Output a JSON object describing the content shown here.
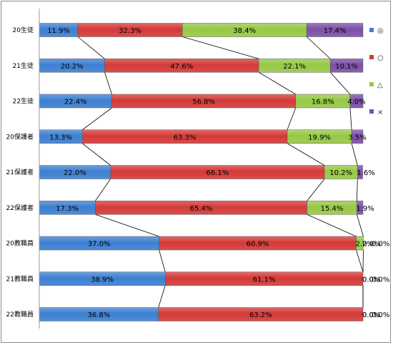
{
  "chart_data": {
    "type": "bar",
    "orientation": "horizontal",
    "stacked": "percent",
    "categories": [
      "20生徒",
      "21生徒",
      "22生徒",
      "20保護者",
      "21保護者",
      "22保護者",
      "20教職員",
      "21教職員",
      "22教職員"
    ],
    "series": [
      {
        "name": "◎",
        "color": "#3d7fd1",
        "values": [
          11.9,
          20.2,
          22.4,
          13.3,
          22.0,
          17.3,
          37.0,
          38.9,
          36.8
        ],
        "labels": [
          "11.9%",
          "20.2%",
          "22.4%",
          "13.3%",
          "22.0%",
          "17.3%",
          "37.0%",
          "38.9%",
          "36.8%"
        ]
      },
      {
        "name": "○",
        "color": "#d33a38",
        "values": [
          32.3,
          47.6,
          56.8,
          63.3,
          66.1,
          65.4,
          60.9,
          61.1,
          63.2
        ],
        "labels": [
          "32.3%",
          "47.6%",
          "56.8%",
          "63.3%",
          "66.1%",
          "65.4%",
          "60.9%",
          "61.1%",
          "63.2%"
        ]
      },
      {
        "name": "△",
        "color": "#96c845",
        "values": [
          38.4,
          22.1,
          16.8,
          19.9,
          10.2,
          15.4,
          2.2,
          0.0,
          0.0
        ],
        "labels": [
          "38.4%",
          "22.1%",
          "16.8%",
          "19.9%",
          "10.2%",
          "15.4%",
          "2.2%",
          "0.0%",
          "0.0%"
        ]
      },
      {
        "name": "×",
        "color": "#7c4fa6",
        "values": [
          17.4,
          10.1,
          4.0,
          3.5,
          1.6,
          1.9,
          0.0,
          0.0,
          0.0
        ],
        "labels": [
          "17.4%",
          "10.1%",
          "4.0%",
          "3.5%",
          "1.6%",
          "1.9%",
          "0.0%",
          "0.0%",
          "0.0%"
        ]
      }
    ],
    "xlim": [
      0,
      100
    ],
    "series_lines": true,
    "grid": false,
    "legend_position": "right"
  }
}
